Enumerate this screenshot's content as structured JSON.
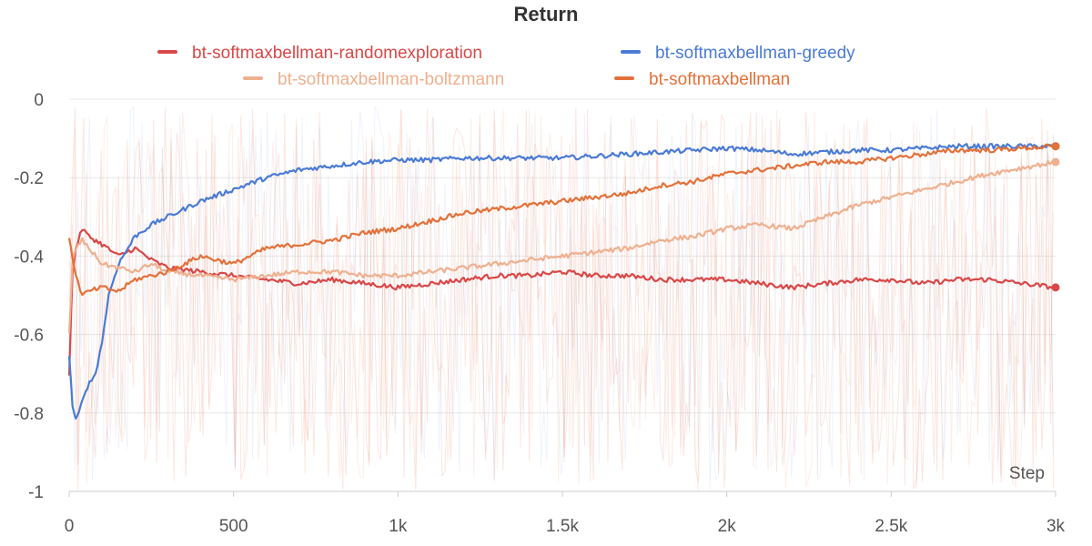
{
  "chart_data": {
    "type": "line",
    "title": "Return",
    "xlabel": "Step",
    "ylabel": "",
    "xlim": [
      0,
      3000
    ],
    "ylim": [
      -1,
      0
    ],
    "grid": true,
    "legend_position": "top",
    "x_ticks": [
      0,
      500,
      1000,
      1500,
      2000,
      2500,
      3000
    ],
    "x_tick_labels": [
      "0",
      "500",
      "1k",
      "1.5k",
      "2k",
      "2.5k",
      "3k"
    ],
    "y_ticks": [
      0,
      -0.2,
      -0.4,
      -0.6,
      -0.8,
      -1
    ],
    "y_tick_labels": [
      "0",
      "-0.2",
      "-0.4",
      "-0.6",
      "-0.8",
      "-1"
    ],
    "series": [
      {
        "name": "bt-softmaxbellman-randomexploration",
        "color": "#d94848",
        "x": [
          0,
          10,
          20,
          40,
          60,
          100,
          150,
          200,
          250,
          300,
          400,
          500,
          600,
          700,
          800,
          900,
          1000,
          1100,
          1200,
          1300,
          1400,
          1500,
          1600,
          1700,
          1800,
          1900,
          2000,
          2100,
          2200,
          2300,
          2400,
          2500,
          2600,
          2700,
          2800,
          2900,
          3000
        ],
        "values": [
          -0.7,
          -0.45,
          -0.38,
          -0.33,
          -0.35,
          -0.37,
          -0.4,
          -0.38,
          -0.41,
          -0.43,
          -0.44,
          -0.45,
          -0.46,
          -0.47,
          -0.46,
          -0.47,
          -0.48,
          -0.47,
          -0.46,
          -0.45,
          -0.45,
          -0.44,
          -0.45,
          -0.45,
          -0.46,
          -0.46,
          -0.46,
          -0.47,
          -0.48,
          -0.47,
          -0.46,
          -0.46,
          -0.47,
          -0.46,
          -0.46,
          -0.47,
          -0.48
        ]
      },
      {
        "name": "bt-softmaxbellman-greedy",
        "color": "#4a7bd6",
        "x": [
          0,
          10,
          20,
          30,
          50,
          80,
          100,
          120,
          150,
          200,
          250,
          300,
          400,
          500,
          600,
          700,
          800,
          900,
          1000,
          1100,
          1200,
          1300,
          1400,
          1500,
          1600,
          1700,
          1800,
          1900,
          2000,
          2100,
          2200,
          2300,
          2400,
          2500,
          2600,
          2700,
          2800,
          2900,
          3000
        ],
        "values": [
          -0.65,
          -0.78,
          -0.82,
          -0.8,
          -0.74,
          -0.7,
          -0.62,
          -0.5,
          -0.42,
          -0.35,
          -0.32,
          -0.3,
          -0.26,
          -0.23,
          -0.2,
          -0.18,
          -0.17,
          -0.16,
          -0.155,
          -0.155,
          -0.15,
          -0.15,
          -0.15,
          -0.15,
          -0.145,
          -0.14,
          -0.135,
          -0.13,
          -0.125,
          -0.13,
          -0.14,
          -0.135,
          -0.13,
          -0.13,
          -0.125,
          -0.12,
          -0.12,
          -0.12,
          -0.12
        ]
      },
      {
        "name": "bt-softmaxbellman-boltzmann",
        "color": "#efb08f",
        "x": [
          0,
          10,
          20,
          40,
          60,
          100,
          150,
          200,
          250,
          300,
          400,
          500,
          600,
          700,
          800,
          900,
          1000,
          1100,
          1200,
          1300,
          1400,
          1500,
          1600,
          1700,
          1800,
          1900,
          2000,
          2100,
          2200,
          2300,
          2400,
          2500,
          2600,
          2700,
          2800,
          2900,
          3000
        ],
        "values": [
          -0.6,
          -0.42,
          -0.38,
          -0.36,
          -0.38,
          -0.42,
          -0.43,
          -0.44,
          -0.42,
          -0.44,
          -0.45,
          -0.46,
          -0.45,
          -0.44,
          -0.44,
          -0.45,
          -0.45,
          -0.44,
          -0.43,
          -0.42,
          -0.41,
          -0.4,
          -0.39,
          -0.38,
          -0.36,
          -0.35,
          -0.33,
          -0.32,
          -0.33,
          -0.3,
          -0.27,
          -0.25,
          -0.23,
          -0.21,
          -0.19,
          -0.175,
          -0.16
        ]
      },
      {
        "name": "bt-softmaxbellman",
        "color": "#e3713a",
        "x": [
          0,
          10,
          20,
          40,
          60,
          100,
          150,
          200,
          250,
          300,
          400,
          500,
          600,
          700,
          800,
          900,
          1000,
          1100,
          1200,
          1300,
          1400,
          1500,
          1600,
          1700,
          1800,
          1900,
          2000,
          2100,
          2200,
          2300,
          2400,
          2500,
          2600,
          2700,
          2800,
          2900,
          3000
        ],
        "values": [
          -0.35,
          -0.4,
          -0.45,
          -0.5,
          -0.49,
          -0.48,
          -0.49,
          -0.46,
          -0.45,
          -0.44,
          -0.4,
          -0.42,
          -0.38,
          -0.37,
          -0.36,
          -0.34,
          -0.33,
          -0.31,
          -0.29,
          -0.28,
          -0.27,
          -0.26,
          -0.25,
          -0.24,
          -0.22,
          -0.21,
          -0.19,
          -0.18,
          -0.17,
          -0.16,
          -0.16,
          -0.15,
          -0.14,
          -0.13,
          -0.13,
          -0.125,
          -0.12
        ]
      }
    ]
  }
}
